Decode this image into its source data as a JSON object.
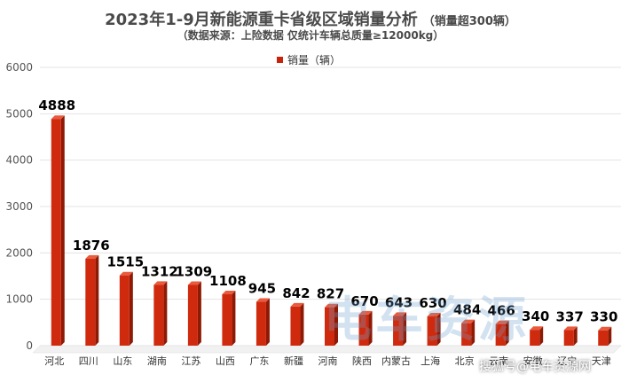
{
  "title": "2023年1-9月新能源重卡省级区域销量分析",
  "title_note": "（销量超300辆）",
  "subtitle": "（数据来源：上险数据  仅统计车辆总质量≥12000kg）",
  "legend_label": "销量（辆）",
  "watermark": "电车资源",
  "watermark_small": "搜狐号@电车资源网",
  "colors": {
    "bar_front": "#d02a0e",
    "bar_side": "#8e1a06",
    "bar_top": "#ea5a3c",
    "accent": "#c8220a"
  },
  "chart_data": {
    "type": "bar",
    "title": "2023年1-9月新能源重卡省级区域销量分析",
    "subtitle": "（数据来源：上险数据  仅统计车辆总质量≥12000kg）",
    "categories": [
      "河北",
      "四川",
      "山东",
      "湖南",
      "江苏",
      "山西",
      "广东",
      "新疆",
      "河南",
      "陕西",
      "内蒙古",
      "上海",
      "北京",
      "云南",
      "安徽",
      "辽宁",
      "天津"
    ],
    "series": [
      {
        "name": "销量（辆）",
        "values": [
          4888,
          1876,
          1515,
          1312,
          1309,
          1108,
          945,
          842,
          827,
          670,
          643,
          630,
          484,
          466,
          340,
          337,
          330
        ]
      }
    ],
    "ylim": [
      0,
      6000
    ],
    "yticks": [
      0,
      1000,
      2000,
      3000,
      4000,
      5000,
      6000
    ],
    "grid": true,
    "legend_position": "top-center"
  }
}
